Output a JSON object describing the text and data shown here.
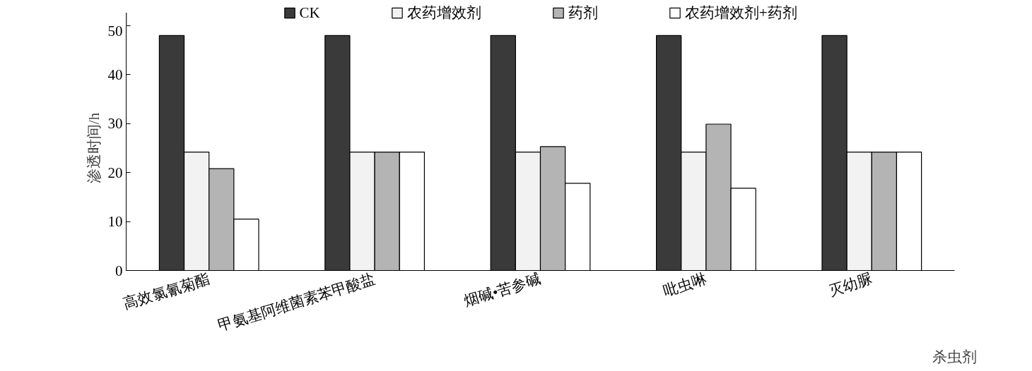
{
  "chart_data": {
    "type": "bar",
    "xlabel": "杀虫剂",
    "ylabel": "渗透时间/h",
    "categories": [
      "高效氯氰菊酯",
      "甲氨基阿维菌素苯甲酸盐",
      "烟碱•苦参碱",
      "吡虫啉",
      "灭幼脲"
    ],
    "series": [
      {
        "name": "CK",
        "color": "#3a3a3a",
        "values": [
          48,
          48,
          48,
          48,
          48
        ]
      },
      {
        "name": "农药增效剂",
        "color": "#f2f2f2",
        "values": [
          24.2,
          24.2,
          24.2,
          24.2,
          24.2
        ]
      },
      {
        "name": "药剂",
        "color": "#b4b4b4",
        "values": [
          20.8,
          24.2,
          25.3,
          29.9,
          24.2
        ]
      },
      {
        "name": "农药增效剂+药剂",
        "color": "#ffffff",
        "values": [
          10.5,
          24.2,
          17.8,
          16.8,
          24.2
        ]
      }
    ],
    "ylim": [
      0,
      50
    ],
    "yticks": [
      0,
      10,
      20,
      30,
      40,
      50
    ],
    "grid": false,
    "legend": "top"
  }
}
